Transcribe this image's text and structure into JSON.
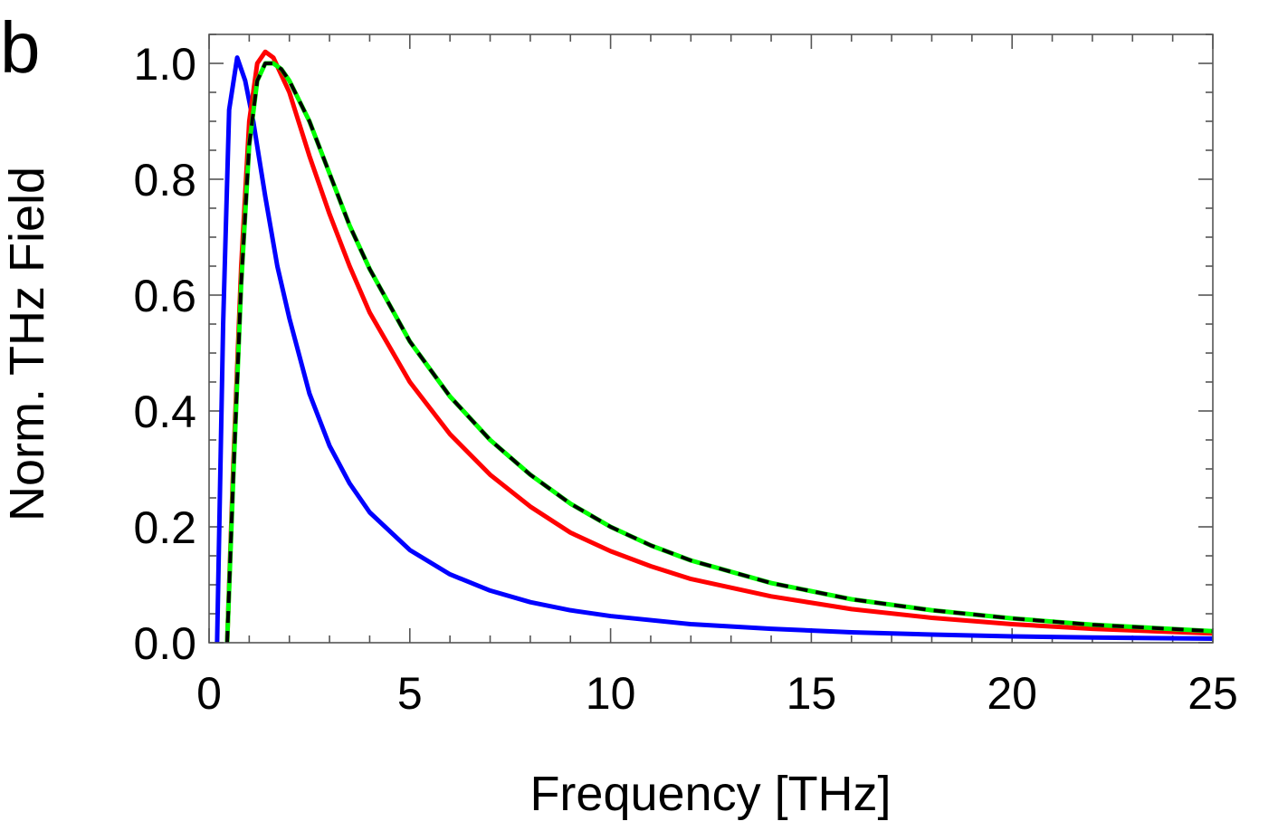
{
  "panel_label": "b",
  "chart_data": {
    "type": "line",
    "xlabel": "Frequency [THz]",
    "ylabel": "Norm. THz Field",
    "xlim": [
      0,
      25
    ],
    "ylim": [
      0,
      1.05
    ],
    "x_ticks": [
      0,
      5,
      10,
      15,
      20,
      25
    ],
    "y_ticks": [
      0.0,
      0.2,
      0.4,
      0.6,
      0.8,
      1.0
    ],
    "x_tick_labels": [
      "0",
      "5",
      "10",
      "15",
      "20",
      "25"
    ],
    "y_tick_labels": [
      "0.0",
      "0.2",
      "0.4",
      "0.6",
      "0.8",
      "1.0"
    ],
    "grid": false,
    "legend": "none",
    "series": [
      {
        "color": "#0000ff",
        "style": "solid",
        "x": [
          0.2,
          0.35,
          0.5,
          0.7,
          0.9,
          1.1,
          1.4,
          1.7,
          2.0,
          2.5,
          3.0,
          3.5,
          4.0,
          5.0,
          6.0,
          7.0,
          8.0,
          9.0,
          10.0,
          12.0,
          14.0,
          16.0,
          18.0,
          20.0,
          22.0,
          25.0
        ],
        "y": [
          0.0,
          0.55,
          0.92,
          1.01,
          0.97,
          0.9,
          0.77,
          0.65,
          0.56,
          0.43,
          0.34,
          0.275,
          0.225,
          0.16,
          0.118,
          0.09,
          0.07,
          0.056,
          0.046,
          0.032,
          0.024,
          0.018,
          0.014,
          0.011,
          0.009,
          0.007
        ]
      },
      {
        "color": "#ff0000",
        "style": "solid",
        "x": [
          0.45,
          0.6,
          0.8,
          1.0,
          1.2,
          1.4,
          1.6,
          1.8,
          2.0,
          2.5,
          3.0,
          3.5,
          4.0,
          5.0,
          6.0,
          7.0,
          8.0,
          9.0,
          10.0,
          11.0,
          12.0,
          14.0,
          16.0,
          18.0,
          20.0,
          22.0,
          25.0
        ],
        "y": [
          0.0,
          0.3,
          0.65,
          0.9,
          1.0,
          1.02,
          1.01,
          0.98,
          0.95,
          0.84,
          0.74,
          0.65,
          0.57,
          0.45,
          0.36,
          0.29,
          0.235,
          0.19,
          0.158,
          0.132,
          0.11,
          0.08,
          0.058,
          0.043,
          0.032,
          0.024,
          0.016
        ]
      },
      {
        "color": "#00ff00",
        "style": "solid",
        "x": [
          0.45,
          0.6,
          0.8,
          1.0,
          1.2,
          1.4,
          1.6,
          1.8,
          2.0,
          2.5,
          3.0,
          3.5,
          4.0,
          5.0,
          6.0,
          7.0,
          8.0,
          9.0,
          10.0,
          11.0,
          12.0,
          14.0,
          16.0,
          18.0,
          20.0,
          22.0,
          25.0
        ],
        "y": [
          0.0,
          0.28,
          0.62,
          0.86,
          0.97,
          1.0,
          1.0,
          0.99,
          0.97,
          0.9,
          0.81,
          0.72,
          0.645,
          0.52,
          0.425,
          0.35,
          0.29,
          0.24,
          0.2,
          0.168,
          0.142,
          0.103,
          0.075,
          0.056,
          0.042,
          0.031,
          0.02
        ]
      },
      {
        "color": "#000000",
        "style": "dashed",
        "x": [
          0.45,
          0.6,
          0.8,
          1.0,
          1.2,
          1.4,
          1.6,
          1.8,
          2.0,
          2.5,
          3.0,
          3.5,
          4.0,
          5.0,
          6.0,
          7.0,
          8.0,
          9.0,
          10.0,
          11.0,
          12.0,
          14.0,
          16.0,
          18.0,
          20.0,
          22.0,
          25.0
        ],
        "y": [
          0.0,
          0.28,
          0.62,
          0.86,
          0.97,
          1.0,
          1.0,
          0.99,
          0.97,
          0.9,
          0.81,
          0.72,
          0.645,
          0.52,
          0.425,
          0.35,
          0.29,
          0.24,
          0.2,
          0.168,
          0.142,
          0.103,
          0.075,
          0.056,
          0.042,
          0.031,
          0.02
        ]
      }
    ]
  }
}
